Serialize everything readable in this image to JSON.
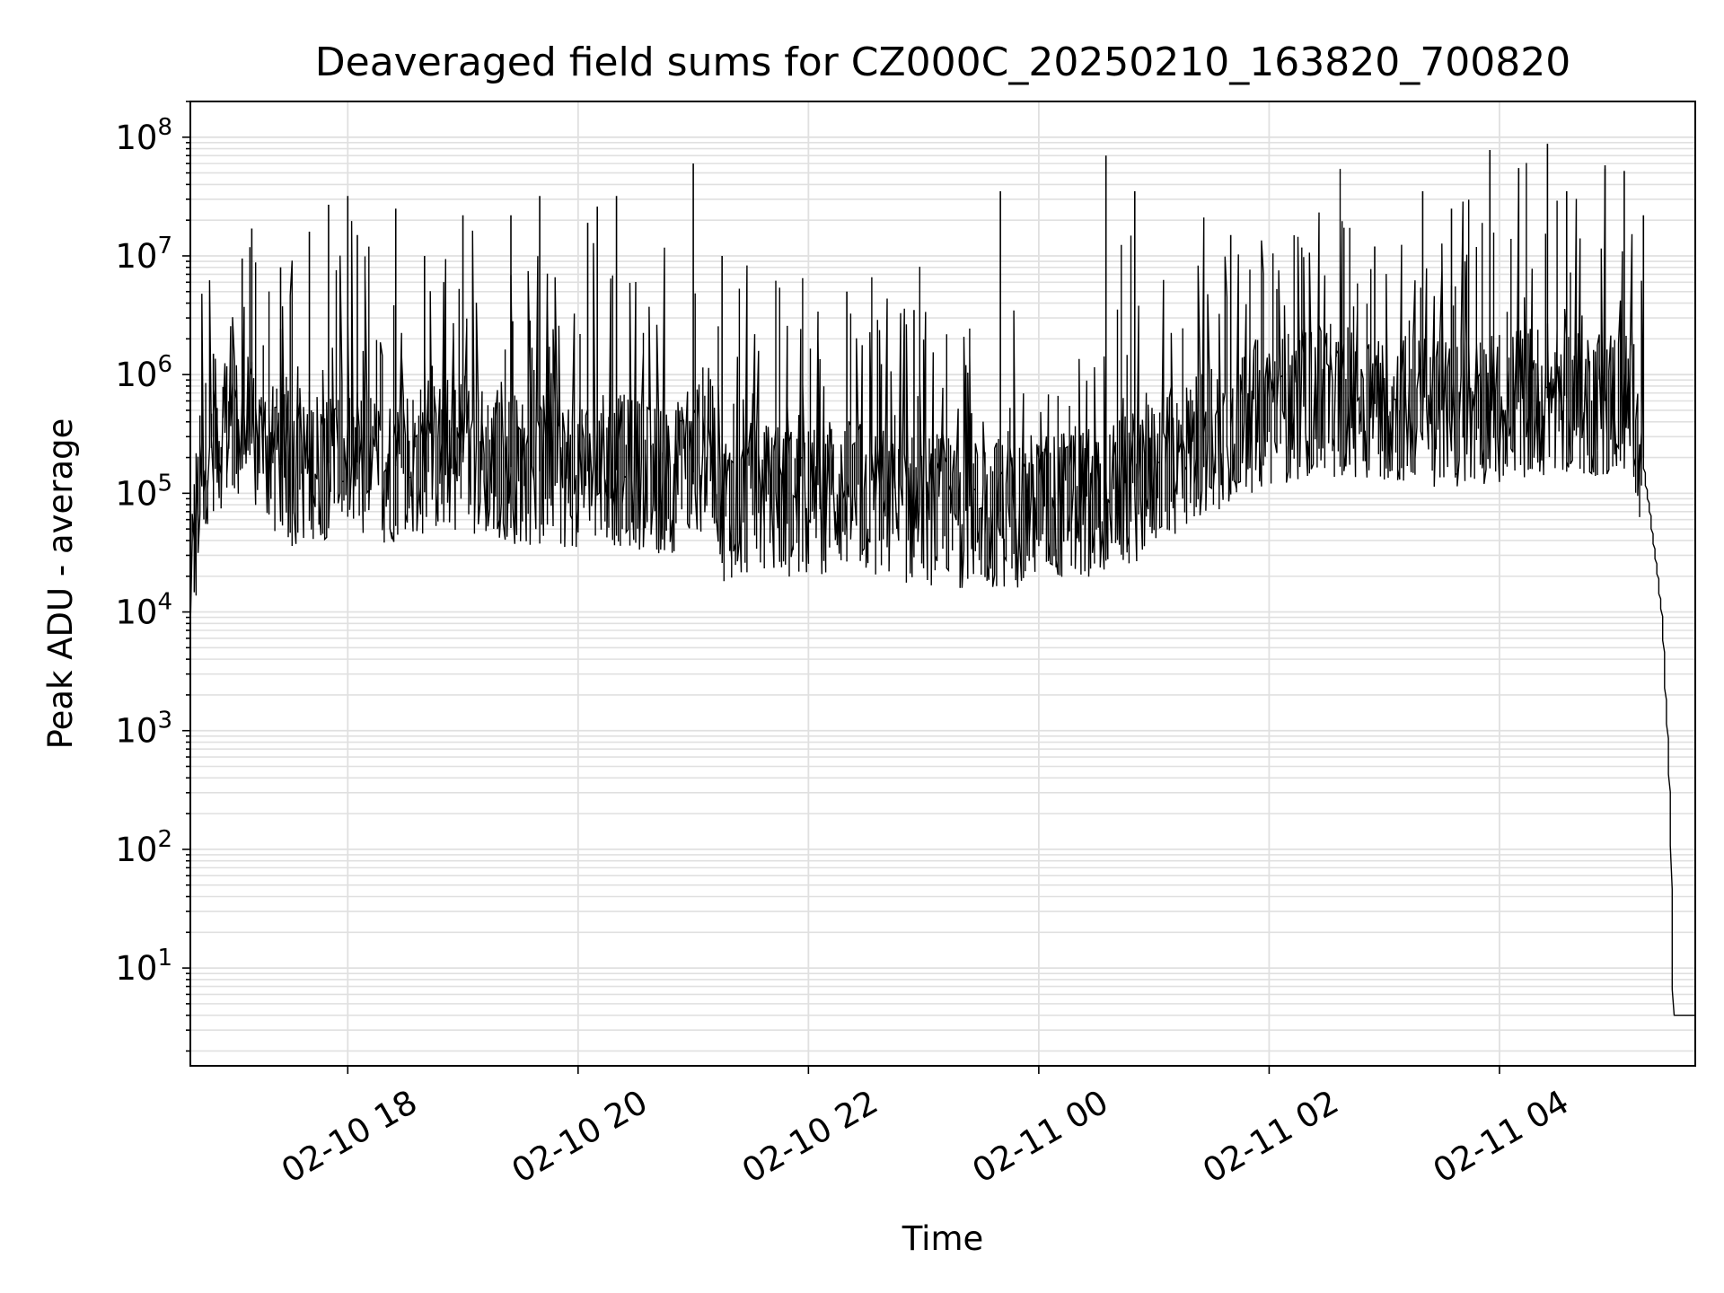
{
  "chart_data": {
    "type": "line",
    "title": "Deaveraged field sums for CZ000C_20250210_163820_700820",
    "xlabel": "Time",
    "ylabel": "Peak ADU - average",
    "yscale": "log",
    "ylim": [
      1.5,
      200000000
    ],
    "xlim": [
      "2025-02-10 16:38",
      "2025-02-11 05:42"
    ],
    "grid": true,
    "line_color": "#000000",
    "grid_color": "#e0e0e0",
    "x_ticks": [
      {
        "value": "2025-02-10 18:00",
        "label": "02-10 18"
      },
      {
        "value": "2025-02-10 20:00",
        "label": "02-10 20"
      },
      {
        "value": "2025-02-10 22:00",
        "label": "02-10 22"
      },
      {
        "value": "2025-02-11 00:00",
        "label": "02-11 00"
      },
      {
        "value": "2025-02-11 02:00",
        "label": "02-11 02"
      },
      {
        "value": "2025-02-11 04:00",
        "label": "02-11 04"
      }
    ],
    "y_ticks": [
      {
        "value": 10,
        "base": "10",
        "exp": "1"
      },
      {
        "value": 100,
        "base": "10",
        "exp": "2"
      },
      {
        "value": 1000,
        "base": "10",
        "exp": "3"
      },
      {
        "value": 10000,
        "base": "10",
        "exp": "4"
      },
      {
        "value": 100000,
        "base": "10",
        "exp": "5"
      },
      {
        "value": 1000000,
        "base": "10",
        "exp": "6"
      },
      {
        "value": 10000000,
        "base": "10",
        "exp": "7"
      },
      {
        "value": 100000000,
        "base": "10",
        "exp": "8"
      }
    ],
    "series": [
      {
        "points": [
          [
            "2025-02-10 16:38",
            14000
          ],
          [
            "2025-02-10 16:45",
            200000
          ],
          [
            "2025-02-10 16:50",
            300000
          ],
          [
            "2025-02-10 17:00",
            350000
          ],
          [
            "2025-02-10 17:10",
            300000
          ],
          [
            "2025-02-10 17:20",
            200000
          ],
          [
            "2025-02-10 17:30",
            150000
          ],
          [
            "2025-02-10 17:40",
            180000
          ],
          [
            "2025-02-10 17:50",
            180000
          ],
          [
            "2025-02-10 18:00",
            200000
          ],
          [
            "2025-02-10 18:15",
            150000
          ],
          [
            "2025-02-10 18:30",
            180000
          ],
          [
            "2025-02-10 18:45",
            200000
          ],
          [
            "2025-02-10 19:00",
            220000
          ],
          [
            "2025-02-10 19:15",
            180000
          ],
          [
            "2025-02-10 19:30",
            160000
          ],
          [
            "2025-02-10 19:45",
            150000
          ],
          [
            "2025-02-10 20:00",
            150000
          ],
          [
            "2025-02-10 20:15",
            160000
          ],
          [
            "2025-02-10 20:30",
            150000
          ],
          [
            "2025-02-10 20:45",
            130000
          ],
          [
            "2025-02-10 21:00",
            150000
          ],
          [
            "2025-02-10 21:10",
            300000
          ],
          [
            "2025-02-10 21:15",
            80000
          ],
          [
            "2025-02-10 21:30",
            90000
          ],
          [
            "2025-02-10 21:45",
            85000
          ],
          [
            "2025-02-10 22:00",
            85000
          ],
          [
            "2025-02-10 22:15",
            100000
          ],
          [
            "2025-02-10 22:30",
            90000
          ],
          [
            "2025-02-10 22:45",
            75000
          ],
          [
            "2025-02-10 23:00",
            75000
          ],
          [
            "2025-02-10 23:15",
            70000
          ],
          [
            "2025-02-10 23:30",
            70000
          ],
          [
            "2025-02-10 23:45",
            70000
          ],
          [
            "2025-02-11 00:00",
            75000
          ],
          [
            "2025-02-11 00:15",
            80000
          ],
          [
            "2025-02-11 00:30",
            90000
          ],
          [
            "2025-02-11 00:45",
            100000
          ],
          [
            "2025-02-11 01:00",
            150000
          ],
          [
            "2025-02-11 01:15",
            200000
          ],
          [
            "2025-02-11 01:30",
            300000
          ],
          [
            "2025-02-11 01:45",
            400000
          ],
          [
            "2025-02-11 02:00",
            500000
          ],
          [
            "2025-02-11 02:15",
            550000
          ],
          [
            "2025-02-11 02:30",
            600000
          ],
          [
            "2025-02-11 02:45",
            600000
          ],
          [
            "2025-02-11 03:00",
            550000
          ],
          [
            "2025-02-11 03:15",
            500000
          ],
          [
            "2025-02-11 03:30",
            500000
          ],
          [
            "2025-02-11 03:45",
            500000
          ],
          [
            "2025-02-11 04:00",
            550000
          ],
          [
            "2025-02-11 04:15",
            600000
          ],
          [
            "2025-02-11 04:30",
            650000
          ],
          [
            "2025-02-11 04:45",
            600000
          ],
          [
            "2025-02-11 05:00",
            600000
          ],
          [
            "2025-02-11 05:10",
            550000
          ],
          [
            "2025-02-11 05:15",
            200000
          ],
          [
            "2025-02-11 05:20",
            50000
          ],
          [
            "2025-02-11 05:25",
            10000
          ],
          [
            "2025-02-11 05:28",
            1000
          ],
          [
            "2025-02-11 05:30",
            100
          ],
          [
            "2025-02-11 05:31",
            4
          ],
          [
            "2025-02-11 05:42",
            4
          ]
        ],
        "spikes": [
          [
            "2025-02-10 16:50",
            1500000
          ],
          [
            "2025-02-10 17:05",
            9500000
          ],
          [
            "2025-02-10 17:10",
            17000000
          ],
          [
            "2025-02-10 17:25",
            8000000
          ],
          [
            "2025-02-10 17:40",
            16000000
          ],
          [
            "2025-02-10 17:50",
            27000000
          ],
          [
            "2025-02-10 18:00",
            32000000
          ],
          [
            "2025-02-10 18:05",
            15000000
          ],
          [
            "2025-02-10 18:25",
            25000000
          ],
          [
            "2025-02-10 18:40",
            10000000
          ],
          [
            "2025-02-10 19:00",
            22000000
          ],
          [
            "2025-02-10 19:25",
            22000000
          ],
          [
            "2025-02-10 19:40",
            32000000
          ],
          [
            "2025-02-10 20:05",
            19000000
          ],
          [
            "2025-02-10 20:10",
            26000000
          ],
          [
            "2025-02-10 20:20",
            32000000
          ],
          [
            "2025-02-10 21:00",
            60000000
          ],
          [
            "2025-02-10 21:15",
            10000000
          ],
          [
            "2025-02-10 22:20",
            5000000
          ],
          [
            "2025-02-10 22:55",
            3500000
          ],
          [
            "2025-02-10 23:40",
            35000000
          ],
          [
            "2025-02-11 00:35",
            70000000
          ],
          [
            "2025-02-11 00:50",
            35000000
          ],
          [
            "2025-02-11 01:40",
            15000000
          ],
          [
            "2025-02-11 02:55",
            12000000
          ],
          [
            "2025-02-11 03:20",
            35000000
          ],
          [
            "2025-02-11 03:35",
            25000000
          ],
          [
            "2025-02-11 03:55",
            78000000
          ],
          [
            "2025-02-11 04:10",
            55000000
          ],
          [
            "2025-02-11 04:25",
            88000000
          ],
          [
            "2025-02-11 04:35",
            35000000
          ],
          [
            "2025-02-11 04:55",
            58000000
          ],
          [
            "2025-02-11 05:05",
            52000000
          ],
          [
            "2025-02-11 05:15",
            22000000
          ]
        ]
      }
    ]
  }
}
